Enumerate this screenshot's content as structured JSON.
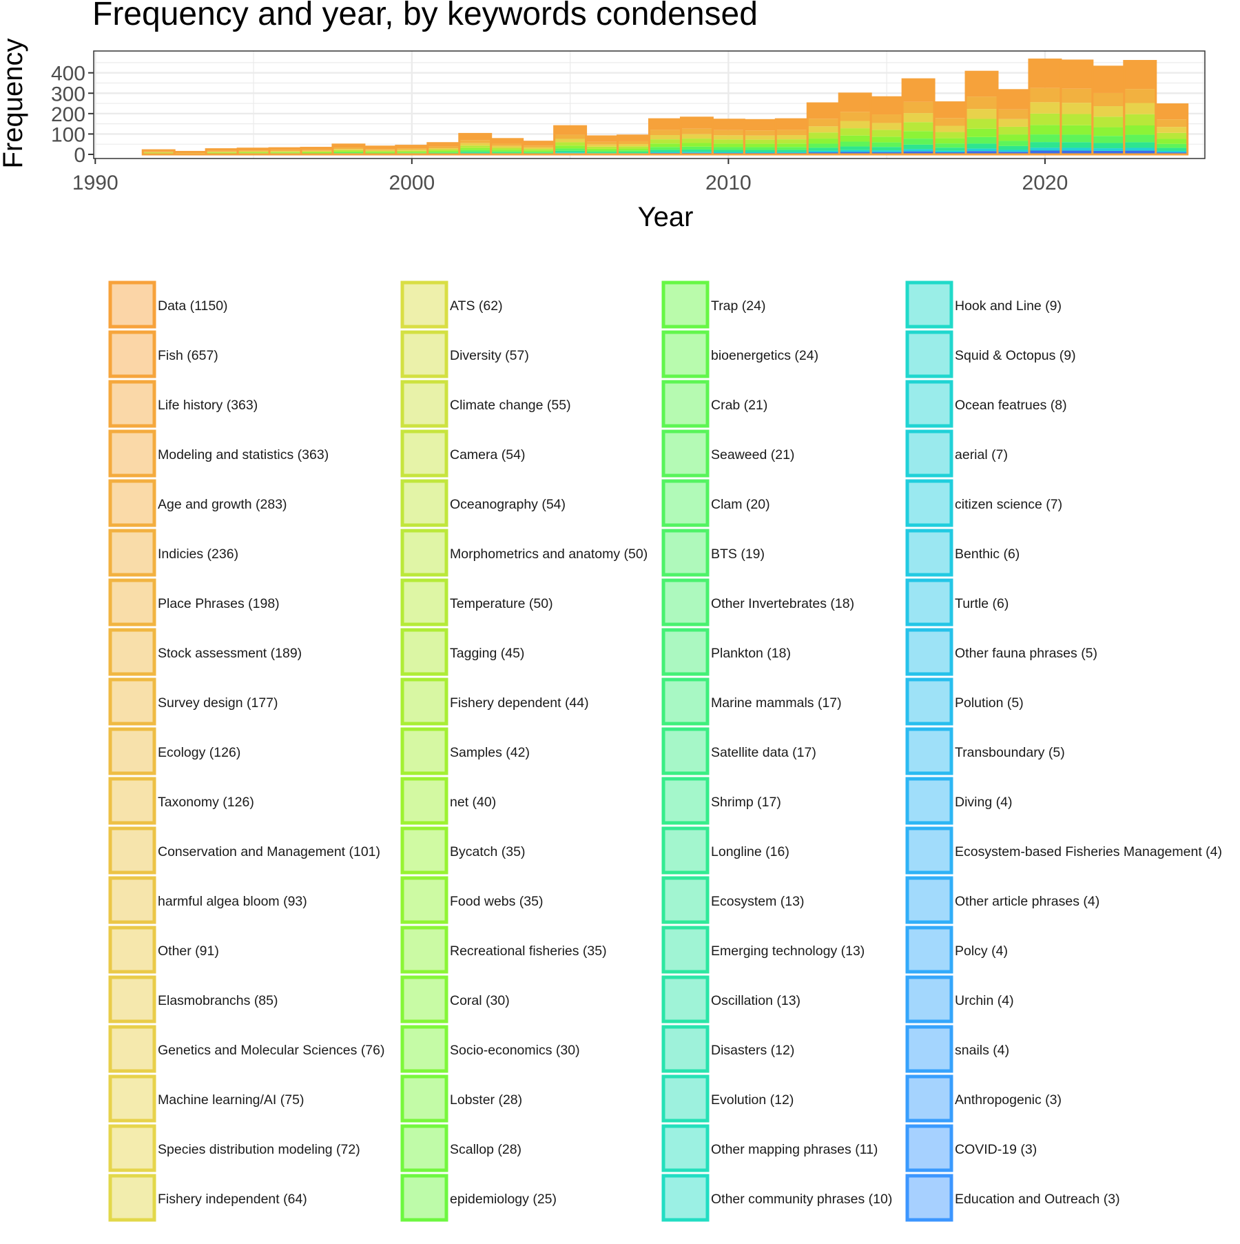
{
  "chart_data": {
    "type": "bar",
    "title": "Frequency and year, by keywords condensed",
    "xlabel": "Year",
    "ylabel": "Frequency",
    "xlim": [
      1990,
      2025
    ],
    "ylim": [
      0,
      480
    ],
    "x_ticks": [
      "1990",
      "2000",
      "2010",
      "2020"
    ],
    "y_ticks": [
      "0",
      "100",
      "200",
      "300",
      "400"
    ],
    "grid": true,
    "stacked": true,
    "legend_position": "bottom",
    "x": [
      1992,
      1993,
      1994,
      1995,
      1996,
      1997,
      1998,
      1999,
      2000,
      2001,
      2002,
      2003,
      2004,
      2005,
      2006,
      2007,
      2008,
      2009,
      2010,
      2011,
      2012,
      2013,
      2014,
      2015,
      2016,
      2017,
      2018,
      2019,
      2020,
      2021,
      2022,
      2023,
      2024
    ],
    "totals": [
      20,
      12,
      25,
      28,
      30,
      32,
      48,
      38,
      42,
      55,
      100,
      75,
      62,
      138,
      88,
      92,
      172,
      180,
      170,
      168,
      172,
      250,
      298,
      280,
      368,
      255,
      405,
      315,
      465,
      460,
      430,
      458,
      245
    ],
    "legend": [
      {
        "label": "Data (1150)",
        "color": "#F7A23B"
      },
      {
        "label": "Fish (657)",
        "color": "#F6A53C"
      },
      {
        "label": "Life history (363)",
        "color": "#F5A83D"
      },
      {
        "label": "Modeling and statistics (363)",
        "color": "#F4AB3E"
      },
      {
        "label": "Age and growth (283)",
        "color": "#F3AE3F"
      },
      {
        "label": "Indicies (236)",
        "color": "#F2B140"
      },
      {
        "label": "Place Phrases (198)",
        "color": "#F1B441"
      },
      {
        "label": "Stock assessment (189)",
        "color": "#F0B742"
      },
      {
        "label": "Survey design (177)",
        "color": "#EFBA43"
      },
      {
        "label": "Ecology (126)",
        "color": "#EEBD44"
      },
      {
        "label": "Taxonomy (126)",
        "color": "#EDC045"
      },
      {
        "label": "Conservation and Management (101)",
        "color": "#ECC346"
      },
      {
        "label": "harmful algea bloom (93)",
        "color": "#EBC647"
      },
      {
        "label": "Other (91)",
        "color": "#EAC948"
      },
      {
        "label": "Elasmobranchs (85)",
        "color": "#E9CC49"
      },
      {
        "label": "Genetics and Molecular Sciences (76)",
        "color": "#E8CF4A"
      },
      {
        "label": "Machine learning/AI (75)",
        "color": "#E7D24B"
      },
      {
        "label": "Species distribution modeling (72)",
        "color": "#E6D54C"
      },
      {
        "label": "Fishery independent (64)",
        "color": "#E2D84A"
      },
      {
        "label": "ATS (62)",
        "color": "#D9DE44"
      },
      {
        "label": "Diversity (57)",
        "color": "#D3E042"
      },
      {
        "label": "Climate change (55)",
        "color": "#CDE240"
      },
      {
        "label": "Camera (54)",
        "color": "#C7E43E"
      },
      {
        "label": "Oceanography (54)",
        "color": "#C1E63C"
      },
      {
        "label": "Morphometrics and anatomy (50)",
        "color": "#BBE83A"
      },
      {
        "label": "Temperature (50)",
        "color": "#B5EA38"
      },
      {
        "label": "Tagging (45)",
        "color": "#AFEC36"
      },
      {
        "label": "Fishery dependent (44)",
        "color": "#A9EE34"
      },
      {
        "label": "Samples (42)",
        "color": "#A3F032"
      },
      {
        "label": "net (40)",
        "color": "#9DF231"
      },
      {
        "label": "Bycatch (35)",
        "color": "#97F332"
      },
      {
        "label": "Food webs (35)",
        "color": "#91F434"
      },
      {
        "label": "Recreational fisheries (35)",
        "color": "#8BF536"
      },
      {
        "label": "Coral (30)",
        "color": "#85F638"
      },
      {
        "label": "Socio-economics (30)",
        "color": "#7FF73A"
      },
      {
        "label": "Lobster (28)",
        "color": "#79F73C"
      },
      {
        "label": "Scallop (28)",
        "color": "#73F73E"
      },
      {
        "label": "epidemiology (25)",
        "color": "#6DF740"
      },
      {
        "label": "Trap (24)",
        "color": "#67F745"
      },
      {
        "label": "bioenergetics (24)",
        "color": "#62F64C"
      },
      {
        "label": "Crab (21)",
        "color": "#5DF553"
      },
      {
        "label": "Seaweed (21)",
        "color": "#58F45A"
      },
      {
        "label": "Clam (20)",
        "color": "#53F361"
      },
      {
        "label": "BTS (19)",
        "color": "#4EF268"
      },
      {
        "label": "Other Invertebrates (18)",
        "color": "#49F16F"
      },
      {
        "label": "Plankton (18)",
        "color": "#44F076"
      },
      {
        "label": "Marine mammals (17)",
        "color": "#3FEF7D"
      },
      {
        "label": "Satellite data (17)",
        "color": "#3AEE84"
      },
      {
        "label": "Shrimp (17)",
        "color": "#36ED8B"
      },
      {
        "label": "Longline (16)",
        "color": "#33EB92"
      },
      {
        "label": "Ecosystem (13)",
        "color": "#30E999"
      },
      {
        "label": "Emerging technology (13)",
        "color": "#2DE7A0"
      },
      {
        "label": "Oscillation (13)",
        "color": "#2AE5A7"
      },
      {
        "label": "Disasters (12)",
        "color": "#28E3AE"
      },
      {
        "label": "Evolution (12)",
        "color": "#26E1B5"
      },
      {
        "label": "Other mapping phrases (11)",
        "color": "#24DFBC"
      },
      {
        "label": "Other community phrases (10)",
        "color": "#22DDC3"
      },
      {
        "label": "Hook and Line (9)",
        "color": "#20DAC9"
      },
      {
        "label": "Squid & Octopus (9)",
        "color": "#20D7CE"
      },
      {
        "label": "Ocean featrues (8)",
        "color": "#20D4D3"
      },
      {
        "label": "aerial (7)",
        "color": "#20D1D8"
      },
      {
        "label": "citizen science (7)",
        "color": "#20CEDD"
      },
      {
        "label": "Benthic (6)",
        "color": "#22CAE2"
      },
      {
        "label": "Turtle (6)",
        "color": "#24C6E6"
      },
      {
        "label": "Other fauna phrases (5)",
        "color": "#26C2EA"
      },
      {
        "label": "Polution (5)",
        "color": "#28BEEE"
      },
      {
        "label": "Transboundary (5)",
        "color": "#2ABAF1"
      },
      {
        "label": "Diving (4)",
        "color": "#2CB6F4"
      },
      {
        "label": "Ecosystem-based Fisheries Management (4)",
        "color": "#2EB2F6"
      },
      {
        "label": "Other article phrases (4)",
        "color": "#30AEF8"
      },
      {
        "label": "Polcy (4)",
        "color": "#32AAFA"
      },
      {
        "label": "Urchin (4)",
        "color": "#34A6FB"
      },
      {
        "label": "snails (4)",
        "color": "#36A2FC"
      },
      {
        "label": "Anthropogenic (3)",
        "color": "#389EFD"
      },
      {
        "label": "COVID-19 (3)",
        "color": "#3A9AFE"
      },
      {
        "label": "Education and Outreach (3)",
        "color": "#3C96FF"
      }
    ]
  }
}
